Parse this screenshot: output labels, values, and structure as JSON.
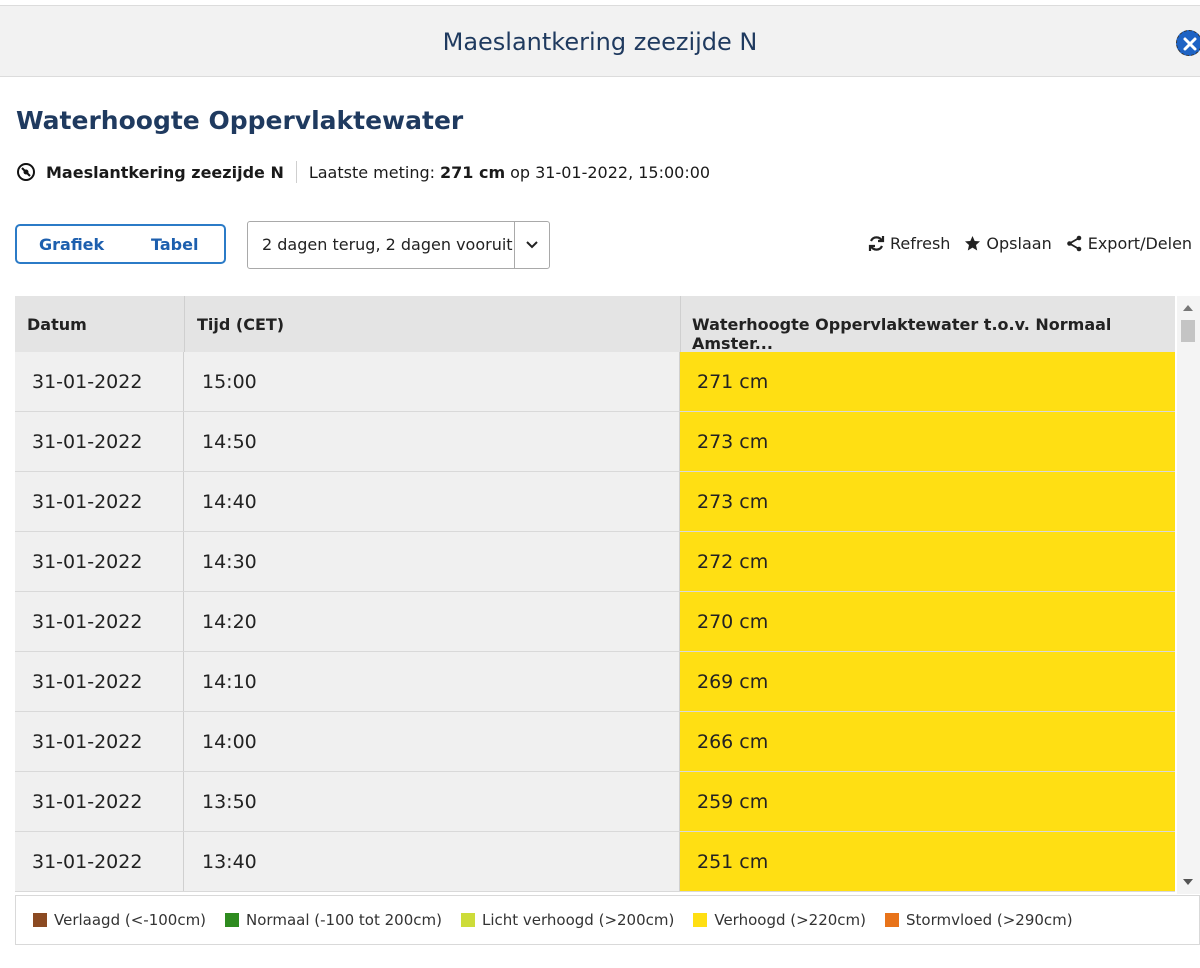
{
  "header": {
    "title": "Maeslantkering zeezijde N"
  },
  "panel": {
    "title": "Waterhoogte Oppervlaktewater",
    "location_name": "Maeslantkering zeezijde N",
    "last_label": "Laatste meting:",
    "last_value": "271 cm",
    "last_op": "op",
    "last_time": "31-01-2022, 15:00:00"
  },
  "toggle": {
    "grafiek": "Grafiek",
    "tabel": "Tabel"
  },
  "period": {
    "selected": "2 dagen terug, 2 dagen vooruit"
  },
  "actions": {
    "refresh": "Refresh",
    "save": "Opslaan",
    "export": "Export/Delen"
  },
  "table": {
    "headers": [
      "Datum",
      "Tijd (CET)",
      "Waterhoogte Oppervlaktewater t.o.v. Normaal Amster..."
    ],
    "rows": [
      {
        "date": "31-01-2022",
        "time": "15:00",
        "value": "271 cm"
      },
      {
        "date": "31-01-2022",
        "time": "14:50",
        "value": "273 cm"
      },
      {
        "date": "31-01-2022",
        "time": "14:40",
        "value": "273 cm"
      },
      {
        "date": "31-01-2022",
        "time": "14:30",
        "value": "272 cm"
      },
      {
        "date": "31-01-2022",
        "time": "14:20",
        "value": "270 cm"
      },
      {
        "date": "31-01-2022",
        "time": "14:10",
        "value": "269 cm"
      },
      {
        "date": "31-01-2022",
        "time": "14:00",
        "value": "266 cm"
      },
      {
        "date": "31-01-2022",
        "time": "13:50",
        "value": "259 cm"
      },
      {
        "date": "31-01-2022",
        "time": "13:40",
        "value": "251 cm"
      }
    ],
    "highlight_color": "#ffdf13"
  },
  "legend": [
    {
      "label": "Verlaagd (<-100cm)",
      "color": "#8b4a22"
    },
    {
      "label": "Normaal (-100 tot 200cm)",
      "color": "#2e8b1f"
    },
    {
      "label": "Licht verhoogd (>200cm)",
      "color": "#cddc39"
    },
    {
      "label": "Verhoogd (>220cm)",
      "color": "#ffdf13"
    },
    {
      "label": "Stormvloed (>290cm)",
      "color": "#e8731a"
    }
  ]
}
